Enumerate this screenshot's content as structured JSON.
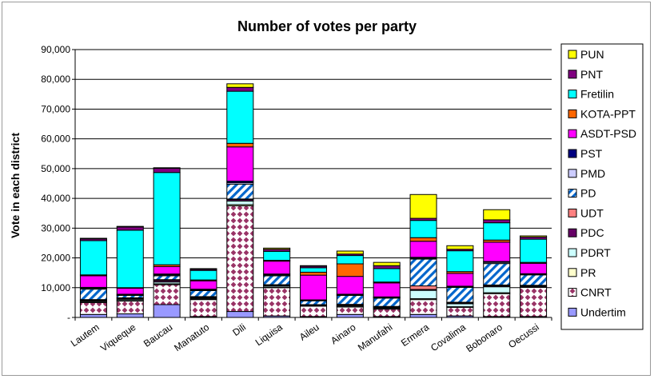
{
  "chart_data": {
    "type": "bar",
    "stacked": true,
    "title": "Number of votes per party",
    "xlabel": "",
    "ylabel": "Vote in each district",
    "ylim": [
      0,
      90000
    ],
    "yticks": [
      "-",
      "10,000",
      "20,000",
      "30,000",
      "40,000",
      "50,000",
      "60,000",
      "70,000",
      "80,000",
      "90,000"
    ],
    "legend_position": "right",
    "categories": [
      "Lautem",
      "Viqueque",
      "Baucau",
      "Manatuto",
      "Dili",
      "Liquisa",
      "Aileu",
      "Ainaro",
      "Manufahi",
      "Ermera",
      "Covalima",
      "Bobonaro",
      "Oecussi"
    ],
    "series": [
      {
        "name": "Undertim",
        "color": "#9999ff",
        "pattern": "solid",
        "values": [
          1000,
          1200,
          4300,
          300,
          2000,
          500,
          300,
          1000,
          300,
          1000,
          500,
          300,
          300
        ]
      },
      {
        "name": "CNRT",
        "color": "#993366",
        "pattern": "diamond",
        "values": [
          4000,
          4300,
          6700,
          5700,
          35500,
          9500,
          3500,
          2500,
          2500,
          5000,
          2900,
          7700,
          9800
        ]
      },
      {
        "name": "PR",
        "color": "#ffffcc",
        "pattern": "solid",
        "values": [
          200,
          200,
          300,
          200,
          400,
          200,
          100,
          100,
          200,
          300,
          200,
          300,
          100
        ]
      },
      {
        "name": "PDRT",
        "color": "#ccffff",
        "pattern": "solid",
        "values": [
          300,
          400,
          600,
          300,
          1200,
          400,
          100,
          300,
          300,
          2800,
          1000,
          2000,
          300
        ]
      },
      {
        "name": "PDC",
        "color": "#660066",
        "pattern": "solid",
        "values": [
          300,
          300,
          500,
          300,
          500,
          300,
          200,
          200,
          200,
          300,
          300,
          300,
          200
        ]
      },
      {
        "name": "UDT",
        "color": "#ff8080",
        "pattern": "solid",
        "values": [
          200,
          200,
          300,
          200,
          200,
          100,
          100,
          300,
          200,
          1200,
          200,
          300,
          100
        ]
      },
      {
        "name": "PD",
        "color": "#0066cc",
        "pattern": "stripe",
        "values": [
          3500,
          800,
          1300,
          2000,
          5000,
          3000,
          1300,
          3000,
          2800,
          9000,
          5000,
          7200,
          3500
        ]
      },
      {
        "name": "PMD",
        "color": "#ccccff",
        "pattern": "solid",
        "values": [
          300,
          200,
          300,
          200,
          500,
          300,
          100,
          200,
          200,
          300,
          200,
          400,
          200
        ]
      },
      {
        "name": "PST",
        "color": "#000080",
        "pattern": "solid",
        "values": [
          300,
          200,
          300,
          300,
          500,
          300,
          200,
          200,
          200,
          300,
          200,
          300,
          200
        ]
      },
      {
        "name": "ASDT-PSD",
        "color": "#ff00ff",
        "pattern": "solid",
        "values": [
          3900,
          2000,
          2500,
          2800,
          11500,
          4300,
          8300,
          6000,
          4700,
          5400,
          4300,
          6500,
          3500
        ]
      },
      {
        "name": "KOTA-PPT",
        "color": "#ff6600",
        "pattern": "solid",
        "values": [
          300,
          200,
          600,
          300,
          1200,
          300,
          1000,
          4200,
          300,
          1200,
          600,
          700,
          300
        ]
      },
      {
        "name": "Fretilin",
        "color": "#00ffff",
        "pattern": "solid",
        "values": [
          11500,
          19300,
          31000,
          3200,
          17500,
          3000,
          1500,
          2800,
          4500,
          5800,
          7000,
          5800,
          7800
        ]
      },
      {
        "name": "PNT",
        "color": "#800080",
        "pattern": "solid",
        "values": [
          600,
          1100,
          1400,
          400,
          1300,
          700,
          500,
          500,
          1000,
          700,
          500,
          1000,
          700
        ]
      },
      {
        "name": "PUN",
        "color": "#ffff00",
        "pattern": "solid",
        "values": [
          200,
          200,
          200,
          200,
          1200,
          400,
          200,
          1000,
          1100,
          8000,
          1200,
          3400,
          400
        ]
      }
    ]
  }
}
